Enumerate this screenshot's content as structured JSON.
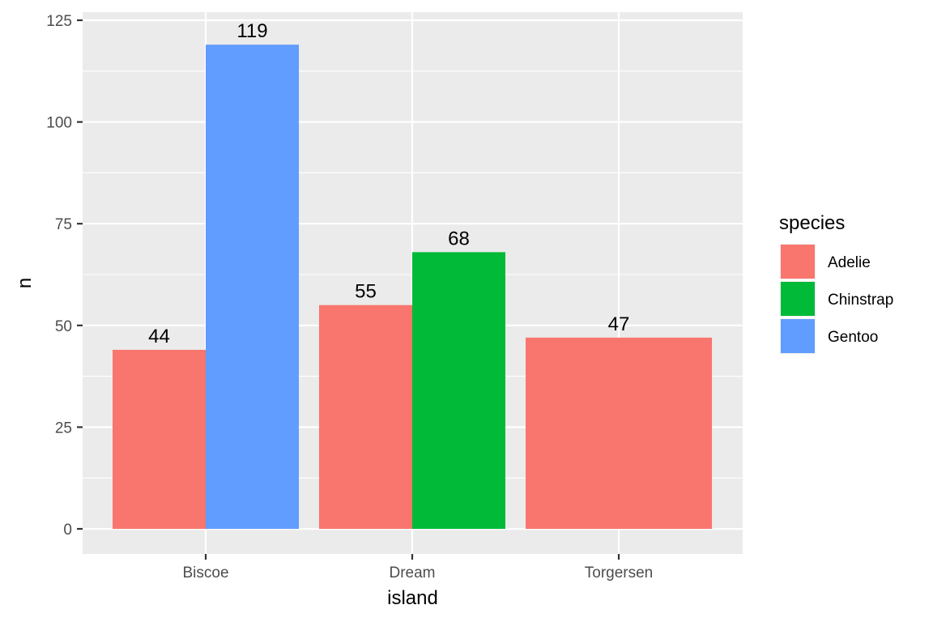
{
  "chart_data": {
    "type": "bar",
    "title": "",
    "xlabel": "island",
    "ylabel": "n",
    "categories": [
      "Biscoe",
      "Dream",
      "Torgersen"
    ],
    "ylim": [
      0,
      125
    ],
    "yticks": [
      0,
      25,
      50,
      75,
      100,
      125
    ],
    "grid": true,
    "position": "dodge",
    "legend": {
      "title": "species",
      "placement": "right",
      "entries": [
        {
          "name": "Adelie",
          "color": "#F8766D"
        },
        {
          "name": "Chinstrap",
          "color": "#00BA38"
        },
        {
          "name": "Gentoo",
          "color": "#619CFF"
        }
      ]
    },
    "bars": [
      {
        "category": "Biscoe",
        "species": "Adelie",
        "value": 44,
        "label": "44"
      },
      {
        "category": "Biscoe",
        "species": "Gentoo",
        "value": 119,
        "label": "119"
      },
      {
        "category": "Dream",
        "species": "Adelie",
        "value": 55,
        "label": "55"
      },
      {
        "category": "Dream",
        "species": "Chinstrap",
        "value": 68,
        "label": "68"
      },
      {
        "category": "Torgersen",
        "species": "Adelie",
        "value": 47,
        "label": "47"
      }
    ],
    "colors": {
      "panel_bg": "#EBEBEB",
      "grid": "#FFFFFF",
      "tick": "#333333"
    }
  }
}
